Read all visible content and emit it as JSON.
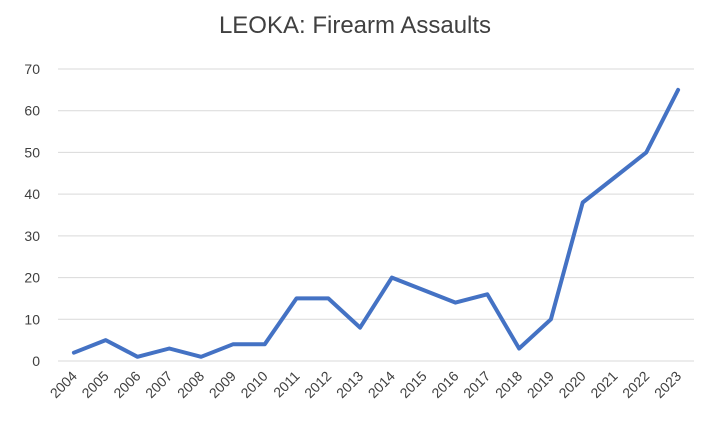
{
  "chart_data": {
    "type": "line",
    "title": "LEOKA: Firearm Assaults",
    "xlabel": "",
    "ylabel": "",
    "categories": [
      "2004",
      "2005",
      "2006",
      "2007",
      "2008",
      "2009",
      "2010",
      "2011",
      "2012",
      "2013",
      "2014",
      "2015",
      "2016",
      "2017",
      "2018",
      "2019",
      "2020",
      "2021",
      "2022",
      "2023"
    ],
    "series": [
      {
        "values": [
          2,
          5,
          1,
          3,
          1,
          4,
          4,
          15,
          15,
          8,
          20,
          17,
          14,
          16,
          3,
          10,
          38,
          44,
          50,
          65
        ]
      }
    ],
    "ylim": [
      0,
      70
    ],
    "yticks": [
      0,
      10,
      20,
      30,
      40,
      50,
      60,
      70
    ],
    "grid": true,
    "legend": "none",
    "line_color": "#4472C4",
    "grid_color": "#d9d9d9"
  }
}
